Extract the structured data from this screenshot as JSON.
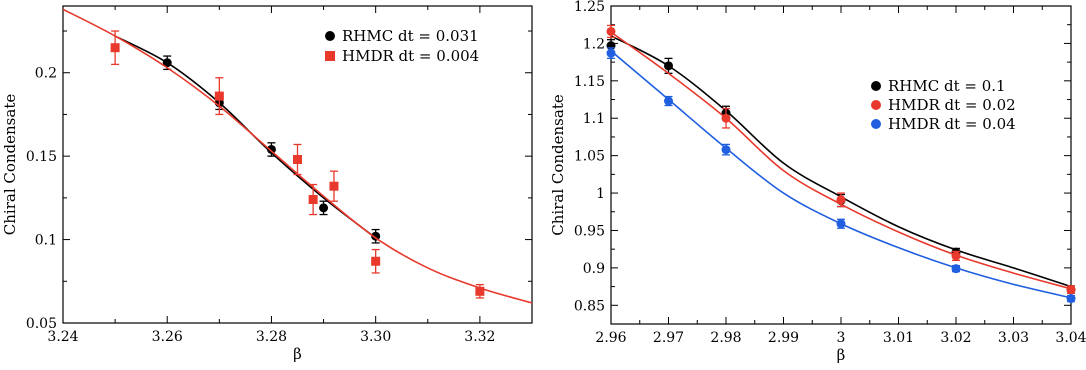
{
  "chart_data": [
    {
      "type": "scatter",
      "title": "",
      "xlabel": "β",
      "ylabel": "Chiral Condensate",
      "xlim": [
        3.24,
        3.33
      ],
      "ylim": [
        0.05,
        0.24
      ],
      "xticks": [
        3.24,
        3.26,
        3.28,
        3.3,
        3.32
      ],
      "xtick_labels": [
        "3.24",
        "3.26",
        "3.28",
        "3.30",
        "3.32"
      ],
      "yticks": [
        0.05,
        0.1,
        0.15,
        0.2
      ],
      "ytick_labels": [
        "0.05",
        "0.1",
        "0.15",
        "0.2"
      ],
      "grid": false,
      "legend_position": "top-right",
      "series": [
        {
          "name": "RHMC dt = 0.031",
          "marker": "circle",
          "color": "#000000",
          "x": [
            3.26,
            3.27,
            3.28,
            3.29,
            3.3
          ],
          "y": [
            0.206,
            0.182,
            0.154,
            0.119,
            0.102
          ],
          "err": [
            0.004,
            0.004,
            0.004,
            0.004,
            0.004
          ],
          "fit_x": [
            3.25,
            3.26,
            3.27,
            3.28,
            3.29,
            3.3
          ],
          "fit_y": [
            0.222,
            0.206,
            0.182,
            0.152,
            0.125,
            0.101
          ]
        },
        {
          "name": "HMDR dt = 0.004",
          "marker": "square",
          "color": "#e8392c",
          "x": [
            3.25,
            3.27,
            3.285,
            3.288,
            3.292,
            3.3,
            3.32
          ],
          "y": [
            0.215,
            0.186,
            0.148,
            0.124,
            0.132,
            0.087,
            0.069
          ],
          "err": [
            0.01,
            0.011,
            0.009,
            0.009,
            0.009,
            0.007,
            0.004
          ],
          "fit_x": [
            3.24,
            3.25,
            3.26,
            3.27,
            3.28,
            3.29,
            3.3,
            3.31,
            3.32,
            3.33
          ],
          "fit_y": [
            0.238,
            0.222,
            0.203,
            0.18,
            0.153,
            0.126,
            0.101,
            0.083,
            0.071,
            0.062
          ]
        }
      ]
    },
    {
      "type": "scatter",
      "title": "",
      "xlabel": "β",
      "ylabel": "Chiral Condensate",
      "xlim": [
        2.96,
        3.04
      ],
      "ylim": [
        0.825,
        1.25
      ],
      "xticks": [
        2.96,
        2.97,
        2.98,
        2.99,
        3.0,
        3.01,
        3.02,
        3.03,
        3.04
      ],
      "xtick_labels": [
        "2.96",
        "2.97",
        "2.98",
        "2.99",
        "3",
        "3.01",
        "3.02",
        "3.03",
        "3.04"
      ],
      "yticks": [
        0.85,
        0.9,
        0.95,
        1.0,
        1.05,
        1.1,
        1.15,
        1.2,
        1.25
      ],
      "ytick_labels": [
        "0.85",
        "0.9",
        "0.95",
        "1",
        "1.05",
        "1.1",
        "1.15",
        "1.2",
        "1.25"
      ],
      "grid": false,
      "legend_position": "center-right",
      "series": [
        {
          "name": "RHMC dt = 0.1",
          "marker": "circle",
          "color": "#000000",
          "x": [
            2.96,
            2.97,
            2.98,
            3.0,
            3.02,
            3.04
          ],
          "y": [
            1.197,
            1.17,
            1.107,
            0.99,
            0.921,
            0.871
          ],
          "err": [
            0.008,
            0.01,
            0.009,
            0.008,
            0.005,
            0.005
          ],
          "fit_x": [
            2.96,
            2.97,
            2.98,
            2.99,
            3.0,
            3.01,
            3.02,
            3.03,
            3.04
          ],
          "fit_y": [
            1.21,
            1.17,
            1.11,
            1.04,
            0.995,
            0.955,
            0.924,
            0.9,
            0.875
          ]
        },
        {
          "name": "HMDR dt = 0.02",
          "marker": "circle",
          "color": "#e8392c",
          "x": [
            2.96,
            2.98,
            3.0,
            3.02,
            3.04
          ],
          "y": [
            1.216,
            1.1,
            0.991,
            0.916,
            0.871
          ],
          "err": [
            0.008,
            0.013,
            0.009,
            0.006,
            0.005
          ],
          "fit_x": [
            2.96,
            2.97,
            2.98,
            2.99,
            3.0,
            3.01,
            3.02,
            3.03,
            3.04
          ],
          "fit_y": [
            1.215,
            1.16,
            1.1,
            1.03,
            0.985,
            0.948,
            0.917,
            0.893,
            0.872
          ]
        },
        {
          "name": "HMDR dt = 0.04",
          "marker": "circle",
          "color": "#1f5fe0",
          "x": [
            2.96,
            2.97,
            2.98,
            3.0,
            3.02,
            3.04
          ],
          "y": [
            1.187,
            1.123,
            1.058,
            0.959,
            0.899,
            0.859
          ],
          "err": [
            0.007,
            0.006,
            0.007,
            0.006,
            0.004,
            0.004
          ],
          "fit_x": [
            2.96,
            2.97,
            2.98,
            2.99,
            3.0,
            3.01,
            3.02,
            3.03,
            3.04
          ],
          "fit_y": [
            1.19,
            1.125,
            1.06,
            1.0,
            0.959,
            0.927,
            0.9,
            0.878,
            0.86
          ]
        }
      ]
    }
  ]
}
